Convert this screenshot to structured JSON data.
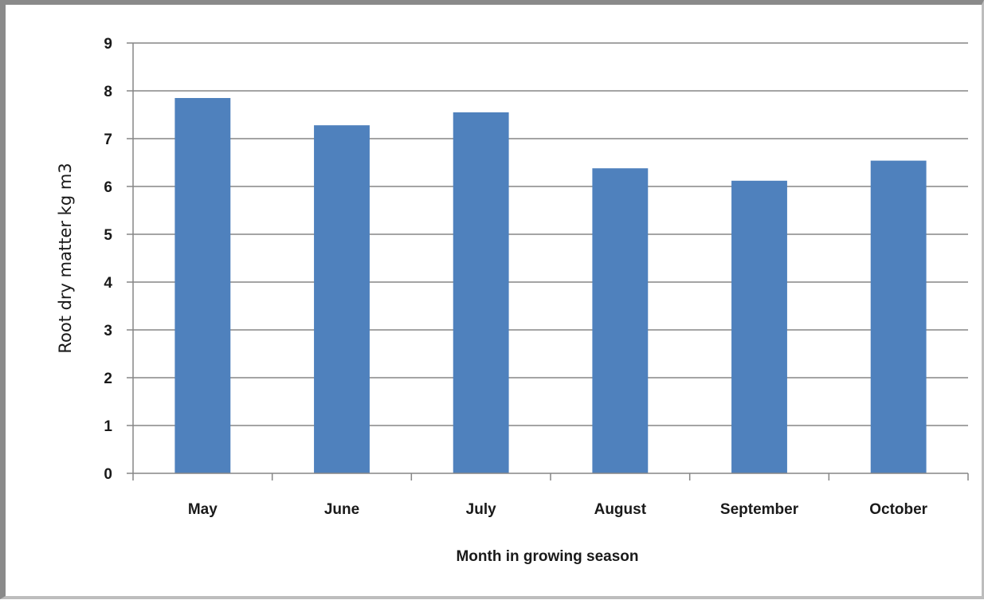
{
  "chart_data": {
    "type": "bar",
    "categories": [
      "May",
      "June",
      "July",
      "August",
      "September",
      "October"
    ],
    "values": [
      7.85,
      7.28,
      7.55,
      6.38,
      6.12,
      6.54
    ],
    "title": "",
    "xlabel": "Month in growing season",
    "ylabel": "Root dry matter kg m3",
    "ylim": [
      0,
      9
    ],
    "yticks": [
      "0",
      "1",
      "2",
      "3",
      "4",
      "5",
      "6",
      "7",
      "8",
      "9"
    ],
    "grid": true,
    "legend": "none",
    "bar_color": "#4f81bd",
    "grid_color": "#868686",
    "axis_color": "#868686"
  }
}
